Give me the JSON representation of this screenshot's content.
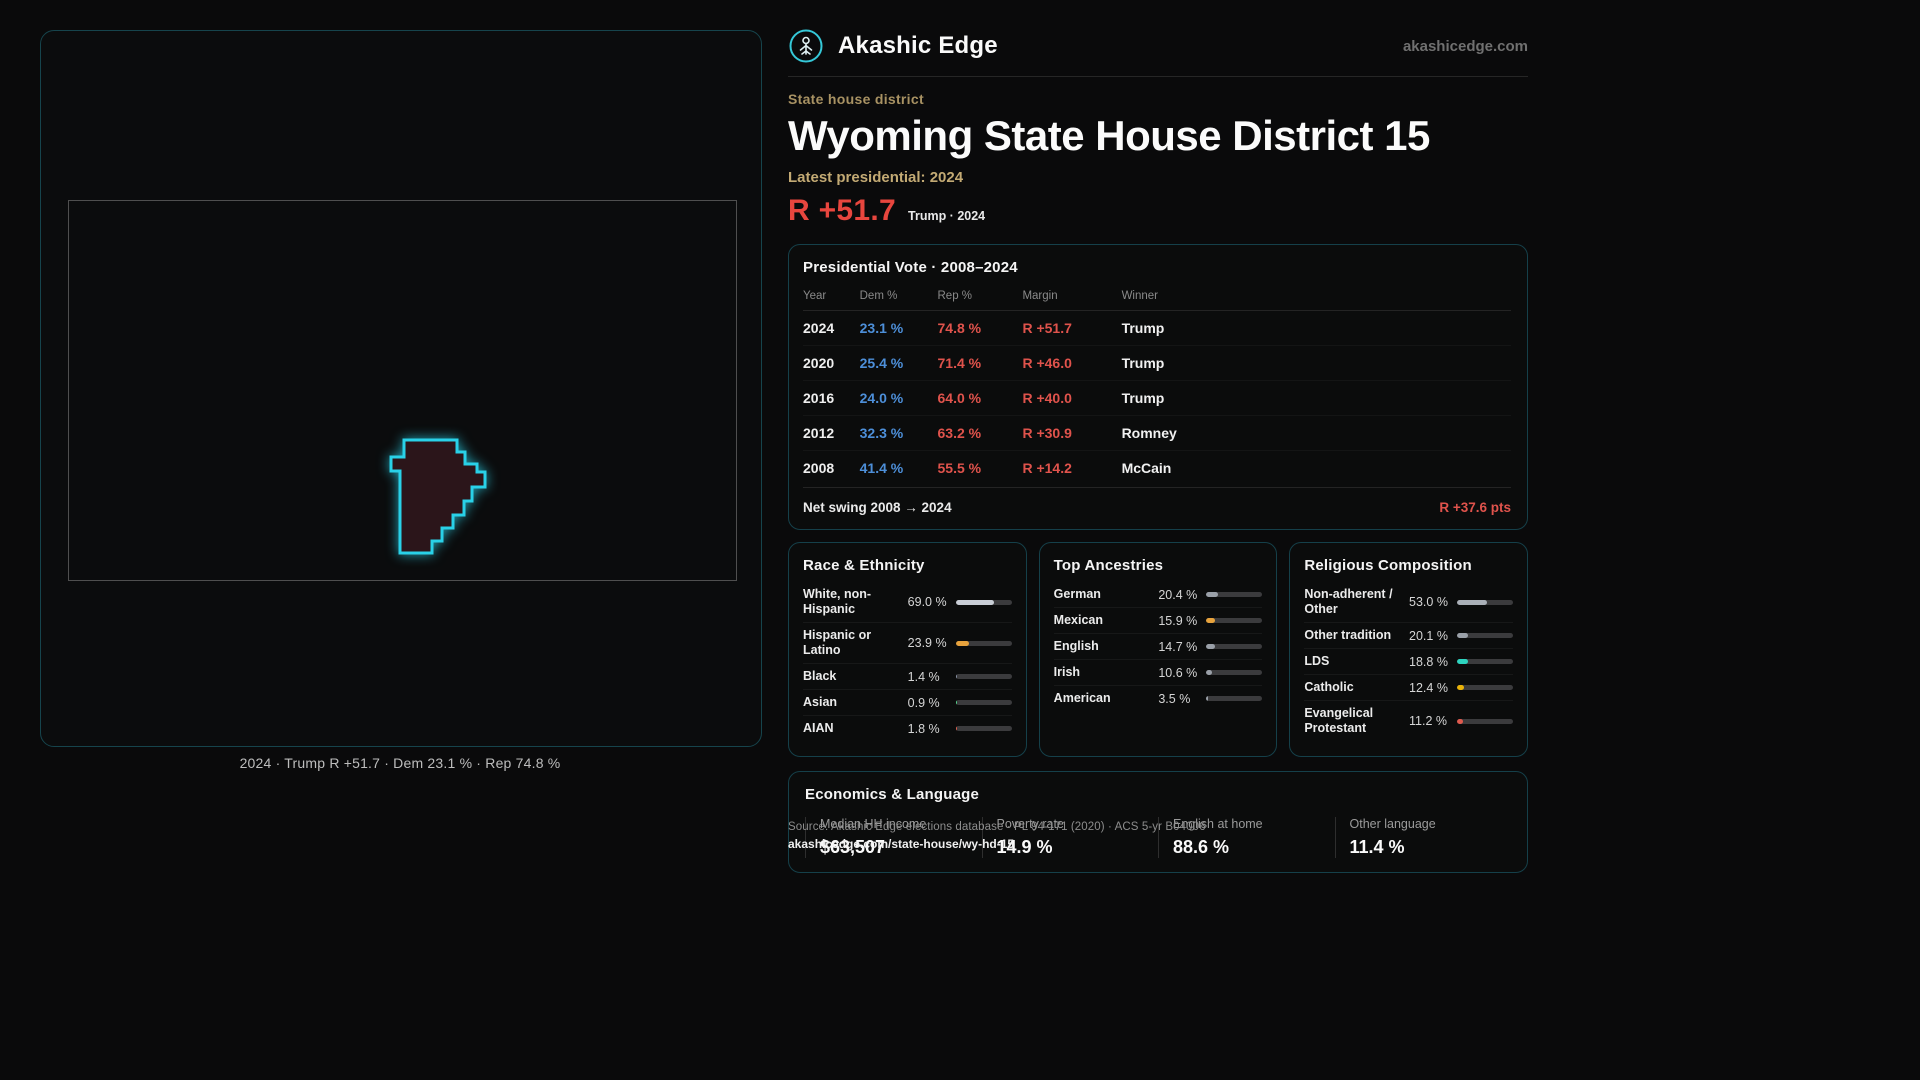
{
  "header": {
    "brand": "Akashic Edge",
    "site": "akashicedge.com"
  },
  "map": {
    "caption": "2024 · Trump R +51.7 · Dem 23.1 % · Rep 74.8 %"
  },
  "overview": {
    "kicker": "State house district",
    "title": "Wyoming State House District 15",
    "latest_label": "Latest presidential: 2024",
    "headline_margin": "R +51.7",
    "headline_context": "Trump · 2024"
  },
  "presidential_table": {
    "title": "Presidential Vote · 2008–2024",
    "columns": [
      "Year",
      "Dem %",
      "Rep %",
      "Margin",
      "Winner"
    ],
    "rows": [
      {
        "year": "2024",
        "dem": "23.1 %",
        "rep": "74.8 %",
        "margin": "R +51.7",
        "winner": "Trump"
      },
      {
        "year": "2020",
        "dem": "25.4 %",
        "rep": "71.4 %",
        "margin": "R +46.0",
        "winner": "Trump"
      },
      {
        "year": "2016",
        "dem": "24.0 %",
        "rep": "64.0 %",
        "margin": "R +40.0",
        "winner": "Trump"
      },
      {
        "year": "2012",
        "dem": "32.3 %",
        "rep": "63.2 %",
        "margin": "R +30.9",
        "winner": "Romney"
      },
      {
        "year": "2008",
        "dem": "41.4 %",
        "rep": "55.5 %",
        "margin": "R +14.2",
        "winner": "McCain"
      }
    ],
    "net_swing_label": "Net swing 2008 → 2024",
    "net_swing_value": "R +37.6 pts"
  },
  "race_ethnicity": {
    "title": "Race & Ethnicity",
    "rows": [
      {
        "label": "White, non-Hispanic",
        "value": "69.0 %",
        "pct": 69.0,
        "color": "#c9ced6"
      },
      {
        "label": "Hispanic or Latino",
        "value": "23.9 %",
        "pct": 23.9,
        "color": "#e8a33d"
      },
      {
        "label": "Black",
        "value": "1.4 %",
        "pct": 1.4,
        "color": "#8a93a5"
      },
      {
        "label": "Asian",
        "value": "0.9 %",
        "pct": 0.9,
        "color": "#53d28c"
      },
      {
        "label": "AIAN",
        "value": "1.8 %",
        "pct": 1.8,
        "color": "#e0614f"
      }
    ]
  },
  "ancestries": {
    "title": "Top Ancestries",
    "rows": [
      {
        "label": "German",
        "value": "20.4 %",
        "pct": 20.4,
        "color": "#9aa0a8"
      },
      {
        "label": "Mexican",
        "value": "15.9 %",
        "pct": 15.9,
        "color": "#e8a33d"
      },
      {
        "label": "English",
        "value": "14.7 %",
        "pct": 14.7,
        "color": "#9aa0a8"
      },
      {
        "label": "Irish",
        "value": "10.6 %",
        "pct": 10.6,
        "color": "#9aa0a8"
      },
      {
        "label": "American",
        "value": "3.5 %",
        "pct": 3.5,
        "color": "#9aa0a8"
      }
    ]
  },
  "religion": {
    "title": "Religious Composition",
    "rows": [
      {
        "label": "Non-adherent / Other",
        "value": "53.0 %",
        "pct": 53.0,
        "color": "#aab0b8"
      },
      {
        "label": "Other tradition",
        "value": "20.1 %",
        "pct": 20.1,
        "color": "#9aa0a8"
      },
      {
        "label": "LDS",
        "value": "18.8 %",
        "pct": 18.8,
        "color": "#2dd4bf"
      },
      {
        "label": "Catholic",
        "value": "12.4 %",
        "pct": 12.4,
        "color": "#eab308"
      },
      {
        "label": "Evangelical Protestant",
        "value": "11.2 %",
        "pct": 11.2,
        "color": "#e05a4e"
      }
    ]
  },
  "economics": {
    "title": "Economics & Language",
    "stats": [
      {
        "label": "Median HH income",
        "value": "$63,507"
      },
      {
        "label": "Poverty rate",
        "value": "14.9 %"
      },
      {
        "label": "English at home",
        "value": "88.6 %"
      },
      {
        "label": "Other language",
        "value": "11.4 %"
      }
    ]
  },
  "footer": {
    "source": "Source: Akashic Edge elections database · PL 94-171 (2020) · ACS 5-yr B04006",
    "permalink": "akashicedge.com/state-house/wy-hd-15"
  },
  "colors": {
    "accent_cyan": "#29d1e8",
    "dem_blue": "#4d8fd9",
    "rep_red": "#e0534c",
    "gold": "#a89263"
  }
}
